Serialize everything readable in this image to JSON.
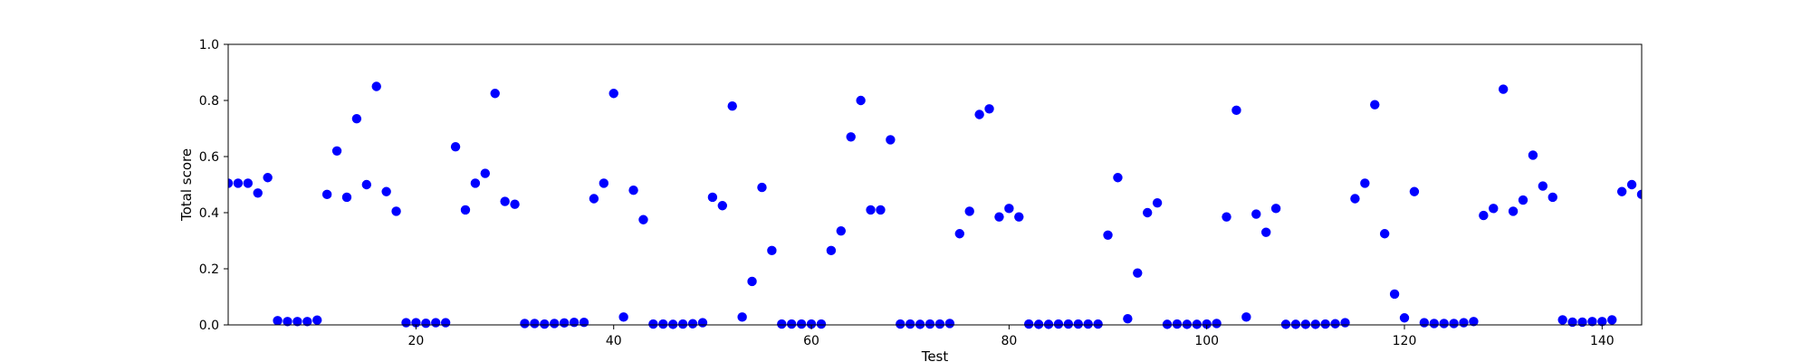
{
  "chart_data": {
    "type": "scatter",
    "title": "",
    "xlabel": "Test",
    "ylabel": "Total score",
    "xlim": [
      1,
      144
    ],
    "ylim": [
      0.0,
      1.0
    ],
    "xticks": [
      20,
      40,
      60,
      80,
      100,
      120,
      140
    ],
    "yticks": [
      0.0,
      0.2,
      0.4,
      0.6,
      0.8,
      1.0
    ],
    "ytick_labels": [
      "0.0",
      "0.2",
      "0.4",
      "0.6",
      "0.8",
      "1.0"
    ],
    "grid": false,
    "legend": "none",
    "marker_color": "#0000ff",
    "x": [
      1,
      2,
      3,
      4,
      5,
      6,
      7,
      8,
      9,
      10,
      11,
      12,
      13,
      14,
      15,
      16,
      17,
      18,
      19,
      20,
      21,
      22,
      23,
      24,
      25,
      26,
      27,
      28,
      29,
      30,
      31,
      32,
      33,
      34,
      35,
      36,
      37,
      38,
      39,
      40,
      41,
      42,
      43,
      44,
      45,
      46,
      47,
      48,
      49,
      50,
      51,
      52,
      53,
      54,
      55,
      56,
      57,
      58,
      59,
      60,
      61,
      62,
      63,
      64,
      65,
      66,
      67,
      68,
      69,
      70,
      71,
      72,
      73,
      74,
      75,
      76,
      77,
      78,
      79,
      80,
      81,
      82,
      83,
      84,
      85,
      86,
      87,
      88,
      89,
      90,
      91,
      92,
      93,
      94,
      95,
      96,
      97,
      98,
      99,
      100,
      101,
      102,
      103,
      104,
      105,
      106,
      107,
      108,
      109,
      110,
      111,
      112,
      113,
      114,
      115,
      116,
      117,
      118,
      119,
      120,
      121,
      122,
      123,
      124,
      125,
      126,
      127,
      128,
      129,
      130,
      131,
      132,
      133,
      134,
      135,
      136,
      137,
      138,
      139,
      140,
      141,
      142,
      143,
      144
    ],
    "y": [
      0.505,
      0.505,
      0.505,
      0.47,
      0.525,
      0.015,
      0.012,
      0.012,
      0.012,
      0.017,
      0.465,
      0.62,
      0.455,
      0.735,
      0.5,
      0.85,
      0.475,
      0.405,
      0.008,
      0.008,
      0.006,
      0.008,
      0.008,
      0.635,
      0.41,
      0.505,
      0.54,
      0.825,
      0.44,
      0.43,
      0.005,
      0.005,
      0.003,
      0.005,
      0.007,
      0.009,
      0.009,
      0.45,
      0.505,
      0.825,
      0.028,
      0.48,
      0.375,
      0.003,
      0.003,
      0.002,
      0.003,
      0.004,
      0.008,
      0.455,
      0.425,
      0.78,
      0.028,
      0.155,
      0.49,
      0.265,
      0.003,
      0.003,
      0.003,
      0.003,
      0.003,
      0.265,
      0.335,
      0.67,
      0.8,
      0.41,
      0.41,
      0.66,
      0.003,
      0.003,
      0.002,
      0.003,
      0.003,
      0.005,
      0.325,
      0.405,
      0.75,
      0.77,
      0.385,
      0.415,
      0.385,
      0.003,
      0.002,
      0.002,
      0.003,
      0.003,
      0.003,
      0.003,
      0.003,
      0.32,
      0.525,
      0.022,
      0.185,
      0.4,
      0.435,
      0.002,
      0.003,
      0.002,
      0.002,
      0.003,
      0.005,
      0.385,
      0.765,
      0.028,
      0.395,
      0.33,
      0.415,
      0.002,
      0.002,
      0.002,
      0.002,
      0.003,
      0.004,
      0.008,
      0.45,
      0.505,
      0.785,
      0.325,
      0.11,
      0.025,
      0.475,
      0.008,
      0.005,
      0.005,
      0.005,
      0.008,
      0.012,
      0.39,
      0.415,
      0.84,
      0.405,
      0.445,
      0.605,
      0.495,
      0.455,
      0.018,
      0.01,
      0.01,
      0.012,
      0.012,
      0.018,
      0.475,
      0.5,
      0.465
    ]
  }
}
